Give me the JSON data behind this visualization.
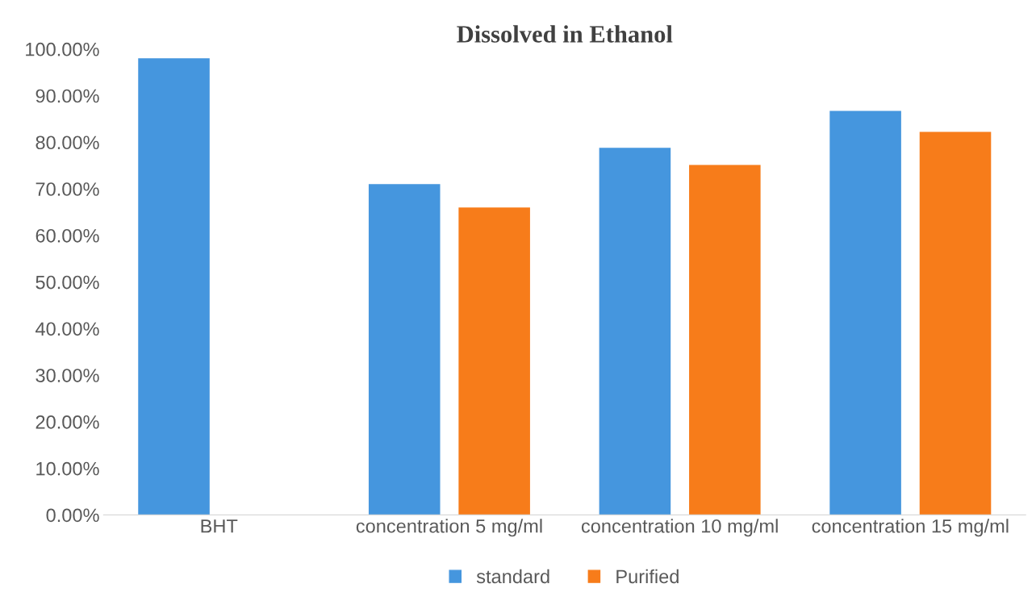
{
  "chart_data": {
    "type": "bar",
    "title": "Dissolved in Ethanol",
    "categories": [
      "BHT",
      "concentration 5 mg/ml",
      "concentration 10 mg/ml",
      "concentration 15 mg/ml"
    ],
    "series": [
      {
        "name": "standard",
        "color": "#4596de",
        "values": [
          98.0,
          71.0,
          78.8,
          86.7
        ]
      },
      {
        "name": "Purified",
        "color": "#f77c1a",
        "values": [
          null,
          66.0,
          75.1,
          82.2
        ]
      }
    ],
    "ylim": [
      0,
      100
    ],
    "yticks": [
      {
        "value": 0,
        "label": "0.00%"
      },
      {
        "value": 10,
        "label": "10.00%"
      },
      {
        "value": 20,
        "label": "20.00%"
      },
      {
        "value": 30,
        "label": "30.00%"
      },
      {
        "value": 40,
        "label": "40.00%"
      },
      {
        "value": 50,
        "label": "50.00%"
      },
      {
        "value": 60,
        "label": "60.00%"
      },
      {
        "value": 70,
        "label": "70.00%"
      },
      {
        "value": 80,
        "label": "80.00%"
      },
      {
        "value": 90,
        "label": "90.00%"
      },
      {
        "value": 100,
        "label": "100.00%"
      }
    ],
    "grid": false,
    "legend": "bottom"
  }
}
